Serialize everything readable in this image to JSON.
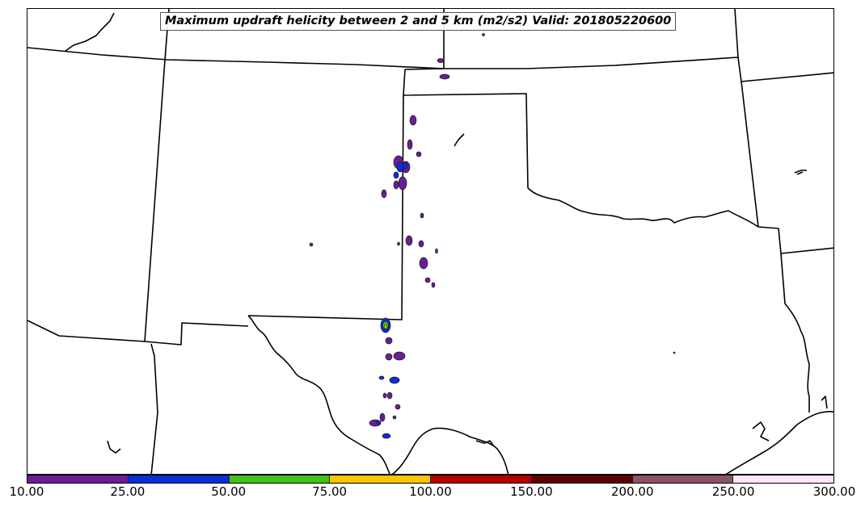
{
  "map": {
    "title": "Maximum updraft helicity between 2 and 5 km (m2/s2) Valid: 201805220600",
    "region_features": [
      "state-boundaries",
      "coastline",
      "updraft-helicity-contours"
    ]
  },
  "colorbar": {
    "label_unit": "m2/s2",
    "tick_labels": [
      "10.00",
      "25.00",
      "50.00",
      "75.00",
      "100.00",
      "150.00",
      "200.00",
      "250.00",
      "300.00"
    ],
    "colors": [
      "#6a1e96",
      "#0a2fd6",
      "#40c312",
      "#fcc500",
      "#b60000",
      "#5e0000",
      "#8b5364",
      "#fde6f8"
    ]
  },
  "colors": {
    "border": "#000000",
    "background": "#ffffff"
  }
}
